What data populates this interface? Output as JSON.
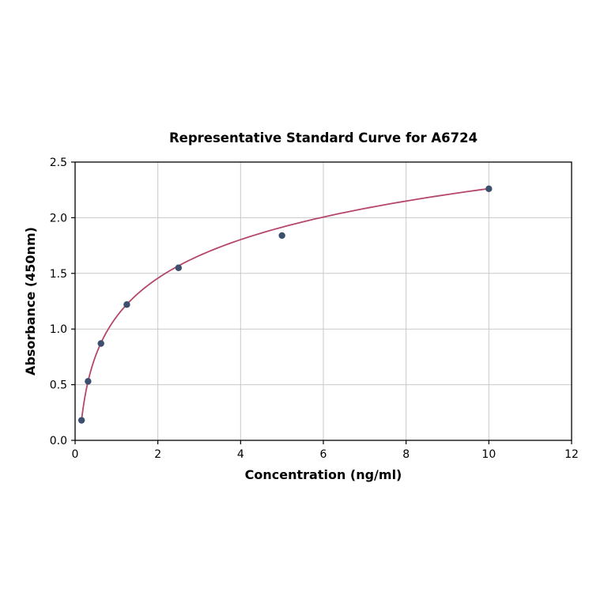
{
  "chart_data": {
    "type": "scatter",
    "title": "Representative Standard Curve for A6724",
    "xlabel": "Concentration (ng/ml)",
    "ylabel": "Absorbance (450nm)",
    "xlim": [
      0,
      12
    ],
    "ylim": [
      0,
      2.5
    ],
    "grid": true,
    "legend": "none",
    "x": [
      0.156,
      0.313,
      0.625,
      1.25,
      2.5,
      5,
      10
    ],
    "y": [
      0.18,
      0.53,
      0.87,
      1.22,
      1.55,
      1.84,
      2.26
    ],
    "fit_curve": {
      "type": "logarithmic",
      "formula": "y = a + b*ln(x)",
      "a": 1.11,
      "b": 0.5,
      "x_start": 0.156,
      "x_end": 10
    },
    "xticks": {
      "values": [
        0,
        2,
        4,
        6,
        8,
        10,
        12
      ],
      "labels": [
        "0",
        "2",
        "4",
        "6",
        "8",
        "10",
        "12"
      ]
    },
    "yticks": {
      "values": [
        0,
        0.5,
        1,
        1.5,
        2,
        2.5
      ],
      "labels": [
        "0.0",
        "0.5",
        "1.0",
        "1.5",
        "2.0",
        "2.5"
      ]
    },
    "colors": {
      "curve": "#b5476b",
      "point": "#3c4f6d",
      "grid": "#c9c9c9",
      "axis": "#000000",
      "background": "#ffffff"
    }
  }
}
